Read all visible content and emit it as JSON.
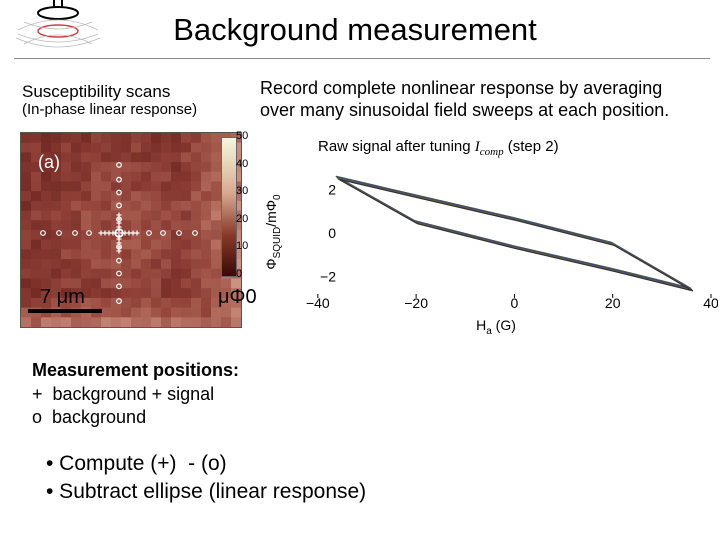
{
  "title": "Background measurement",
  "left_heading": {
    "line1": "Susceptibility scans",
    "line2": "(In-phase linear response)"
  },
  "right_heading": {
    "line1": "Record complete nonlinear response by averaging",
    "line2": "over many sinusoidal field sweeps at each position."
  },
  "heatmap": {
    "panel_label": "(a)",
    "scale_label": "7 μm",
    "colorbar_ticks": [
      "50",
      "40",
      "30",
      "20",
      "10",
      "0"
    ],
    "colorbar_unit": "μΦ0"
  },
  "chart_data": {
    "type": "line",
    "title": "Raw signal after tuning I_comp (step 2)",
    "title_parts": {
      "prefix": "Raw signal after tuning ",
      "var": "I",
      "sub": "comp",
      "suffix": " (step 2)"
    },
    "xlabel": "H_a (G)",
    "ylabel": "Φ_SQUID/mΦ_0",
    "xlim": [
      -42,
      40
    ],
    "ylim": [
      -3,
      3
    ],
    "xticks": [
      -40,
      -20,
      0,
      20,
      40
    ],
    "yticks": [
      2,
      0,
      -2
    ],
    "series": [
      {
        "description_points": [
          {
            "x": -36,
            "y": 2.55
          },
          {
            "x": -20,
            "y": 1.7
          },
          {
            "x": 0,
            "y": 0.65
          },
          {
            "x": 20,
            "y": -0.5
          },
          {
            "x": 36,
            "y": -2.6
          },
          {
            "x": 20,
            "y": -1.7
          },
          {
            "x": 0,
            "y": -0.65
          },
          {
            "x": -20,
            "y": 0.5
          }
        ]
      }
    ],
    "grid": false
  },
  "positions": {
    "heading": "Measurement positions:",
    "line1": "+  background + signal",
    "line2": "o  background"
  },
  "bullets": [
    "• Compute (+)  - (o)",
    "• Subtract ellipse (linear response)"
  ]
}
